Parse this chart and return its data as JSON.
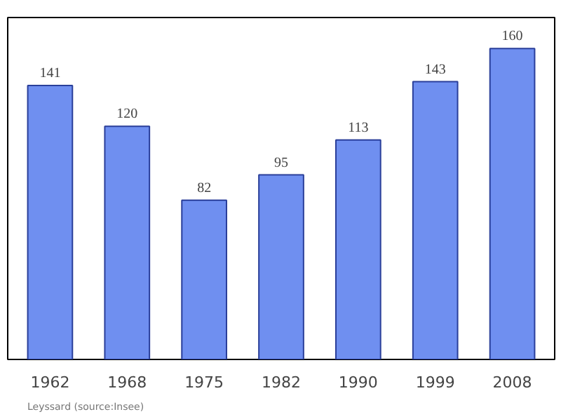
{
  "chart_data": {
    "type": "bar",
    "categories": [
      "1962",
      "1968",
      "1975",
      "1982",
      "1990",
      "1999",
      "2008"
    ],
    "values": [
      141,
      120,
      82,
      95,
      113,
      143,
      160
    ],
    "color": "#6f8ff0",
    "ylim": [
      0,
      176
    ],
    "data_labels": true,
    "grid": false,
    "tick_labels": "x",
    "annotations": [
      "Leyssard    (source:Insee)"
    ]
  }
}
